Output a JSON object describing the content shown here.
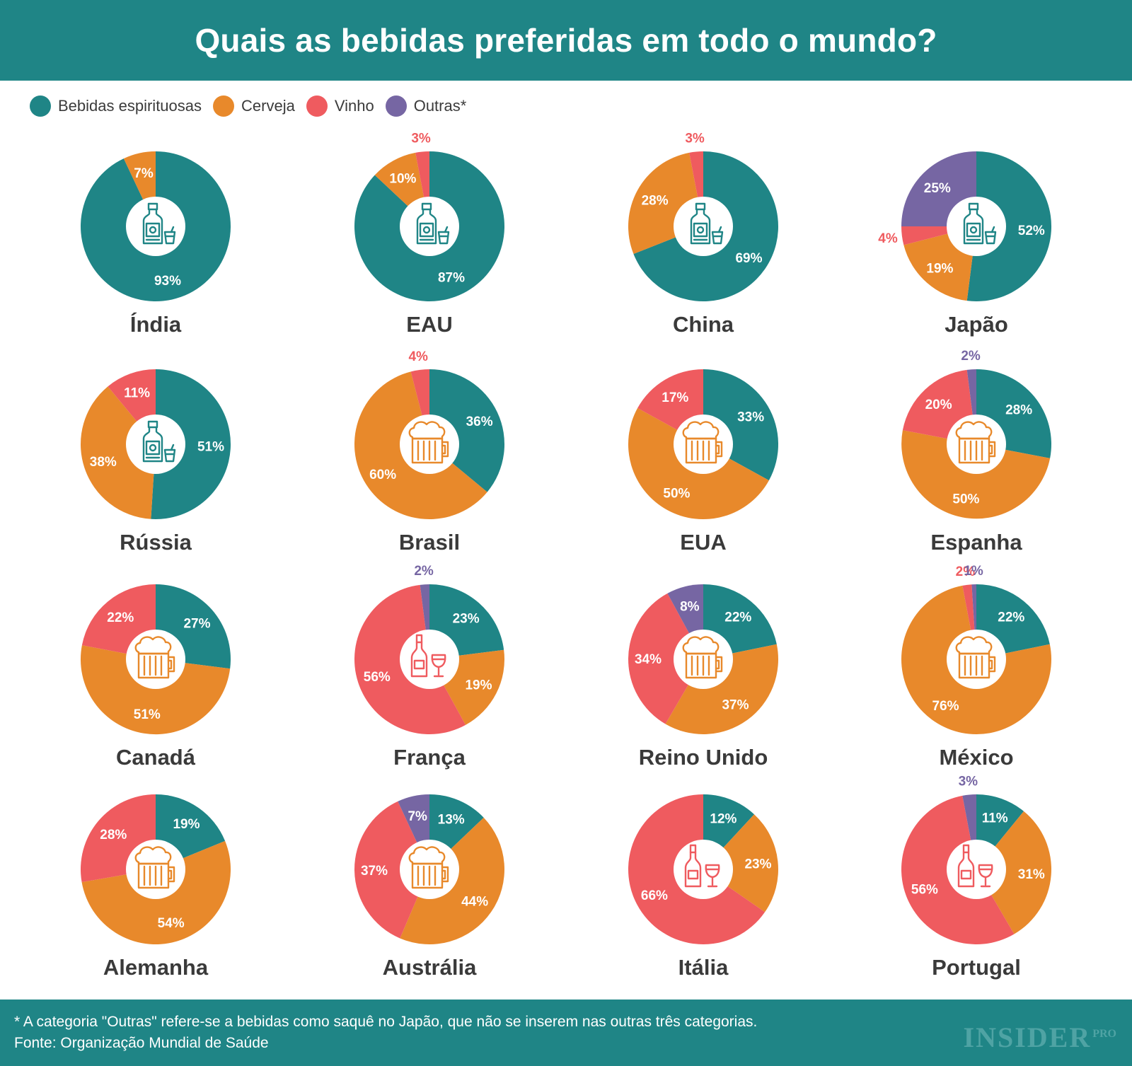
{
  "title": "Quais as bebidas preferidas em todo o mundo?",
  "legend": [
    {
      "key": "spirits",
      "label": "Bebidas espirituosas",
      "color": "#1f8586"
    },
    {
      "key": "beer",
      "label": "Cerveja",
      "color": "#e8892b"
    },
    {
      "key": "wine",
      "label": "Vinho",
      "color": "#ef5b5f"
    },
    {
      "key": "other",
      "label": "Outras*",
      "color": "#7666a3"
    }
  ],
  "chart_data": [
    {
      "type": "pie",
      "title": "Índia",
      "icon": "bottle-icon",
      "series": [
        {
          "name": "Bebidas espirituosas",
          "value": 93,
          "label": "93%"
        },
        {
          "name": "Cerveja",
          "value": 7,
          "label": "7%"
        }
      ]
    },
    {
      "type": "pie",
      "title": "EAU",
      "icon": "bottle-icon",
      "series": [
        {
          "name": "Bebidas espirituosas",
          "value": 87,
          "label": "87%"
        },
        {
          "name": "Cerveja",
          "value": 10,
          "label": "10%"
        },
        {
          "name": "Vinho",
          "value": 3,
          "label": "3%"
        }
      ]
    },
    {
      "type": "pie",
      "title": "China",
      "icon": "bottle-icon",
      "series": [
        {
          "name": "Bebidas espirituosas",
          "value": 69,
          "label": "69%"
        },
        {
          "name": "Cerveja",
          "value": 28,
          "label": "28%"
        },
        {
          "name": "Vinho",
          "value": 3,
          "label": "3%"
        }
      ]
    },
    {
      "type": "pie",
      "title": "Japão",
      "icon": "bottle-icon",
      "series": [
        {
          "name": "Bebidas espirituosas",
          "value": 52,
          "label": "52%"
        },
        {
          "name": "Cerveja",
          "value": 19,
          "label": "19%"
        },
        {
          "name": "Vinho",
          "value": 4,
          "label": "4%"
        },
        {
          "name": "Outras",
          "value": 25,
          "label": "25%"
        }
      ]
    },
    {
      "type": "pie",
      "title": "Rússia",
      "icon": "bottle-icon",
      "series": [
        {
          "name": "Bebidas espirituosas",
          "value": 51,
          "label": "51%"
        },
        {
          "name": "Cerveja",
          "value": 38,
          "label": "38%"
        },
        {
          "name": "Vinho",
          "value": 11,
          "label": "11%"
        }
      ]
    },
    {
      "type": "pie",
      "title": "Brasil",
      "icon": "beer-mug-icon",
      "series": [
        {
          "name": "Bebidas espirituosas",
          "value": 36,
          "label": "36%"
        },
        {
          "name": "Cerveja",
          "value": 60,
          "label": "60%"
        },
        {
          "name": "Vinho",
          "value": 4,
          "label": "4%"
        }
      ]
    },
    {
      "type": "pie",
      "title": "EUA",
      "icon": "beer-mug-icon",
      "series": [
        {
          "name": "Bebidas espirituosas",
          "value": 33,
          "label": "33%"
        },
        {
          "name": "Cerveja",
          "value": 50,
          "label": "50%"
        },
        {
          "name": "Vinho",
          "value": 17,
          "label": "17%"
        }
      ]
    },
    {
      "type": "pie",
      "title": "Espanha",
      "icon": "beer-mug-icon",
      "series": [
        {
          "name": "Bebidas espirituosas",
          "value": 28,
          "label": "28%"
        },
        {
          "name": "Cerveja",
          "value": 50,
          "label": "50%"
        },
        {
          "name": "Vinho",
          "value": 20,
          "label": "20%"
        },
        {
          "name": "Outras",
          "value": 2,
          "label": "2%"
        }
      ]
    },
    {
      "type": "pie",
      "title": "Canadá",
      "icon": "beer-mug-icon",
      "series": [
        {
          "name": "Bebidas espirituosas",
          "value": 27,
          "label": "27%"
        },
        {
          "name": "Cerveja",
          "value": 51,
          "label": "51%"
        },
        {
          "name": "Vinho",
          "value": 22,
          "label": "22%"
        }
      ]
    },
    {
      "type": "pie",
      "title": "França",
      "icon": "wine-icon",
      "series": [
        {
          "name": "Bebidas espirituosas",
          "value": 23,
          "label": "23%"
        },
        {
          "name": "Cerveja",
          "value": 19,
          "label": "19%"
        },
        {
          "name": "Vinho",
          "value": 56,
          "label": "56%"
        },
        {
          "name": "Outras",
          "value": 2,
          "label": "2%"
        }
      ]
    },
    {
      "type": "pie",
      "title": "Reino Unido",
      "icon": "beer-mug-icon",
      "series": [
        {
          "name": "Bebidas espirituosas",
          "value": 22,
          "label": "22%"
        },
        {
          "name": "Cerveja",
          "value": 37,
          "label": "37%"
        },
        {
          "name": "Vinho",
          "value": 34,
          "label": "34%"
        },
        {
          "name": "Outras",
          "value": 8,
          "label": "8%"
        }
      ]
    },
    {
      "type": "pie",
      "title": "México",
      "icon": "beer-mug-icon",
      "series": [
        {
          "name": "Bebidas espirituosas",
          "value": 22,
          "label": "22%"
        },
        {
          "name": "Cerveja",
          "value": 76,
          "label": "76%"
        },
        {
          "name": "Vinho",
          "value": 2,
          "label": "2%"
        },
        {
          "name": "Outras",
          "value": 1,
          "label": "1%"
        }
      ]
    },
    {
      "type": "pie",
      "title": "Alemanha",
      "icon": "beer-mug-icon",
      "series": [
        {
          "name": "Bebidas espirituosas",
          "value": 19,
          "label": "19%"
        },
        {
          "name": "Cerveja",
          "value": 54,
          "label": "54%"
        },
        {
          "name": "Vinho",
          "value": 28,
          "label": "28%"
        }
      ]
    },
    {
      "type": "pie",
      "title": "Austrália",
      "icon": "beer-mug-icon",
      "series": [
        {
          "name": "Bebidas espirituosas",
          "value": 13,
          "label": "13%"
        },
        {
          "name": "Cerveja",
          "value": 44,
          "label": "44%"
        },
        {
          "name": "Vinho",
          "value": 37,
          "label": "37%"
        },
        {
          "name": "Outras",
          "value": 7,
          "label": "7%"
        }
      ]
    },
    {
      "type": "pie",
      "title": "Itália",
      "icon": "wine-icon",
      "series": [
        {
          "name": "Bebidas espirituosas",
          "value": 12,
          "label": "12%"
        },
        {
          "name": "Cerveja",
          "value": 23,
          "label": "23%"
        },
        {
          "name": "Vinho",
          "value": 66,
          "label": "66%"
        }
      ]
    },
    {
      "type": "pie",
      "title": "Portugal",
      "icon": "wine-icon",
      "series": [
        {
          "name": "Bebidas espirituosas",
          "value": 11,
          "label": "11%"
        },
        {
          "name": "Cerveja",
          "value": 31,
          "label": "31%"
        },
        {
          "name": "Vinho",
          "value": 56,
          "label": "56%"
        },
        {
          "name": "Outras",
          "value": 3,
          "label": "3%"
        }
      ]
    }
  ],
  "footer": {
    "note": "* A categoria \"Outras\" refere-se a bebidas como saquê no Japão, que não se inserem nas outras três categorias.",
    "source": "Fonte: Organização Mundial de Saúde",
    "logo": "INSIDER",
    "logo_suffix": "PRO"
  }
}
